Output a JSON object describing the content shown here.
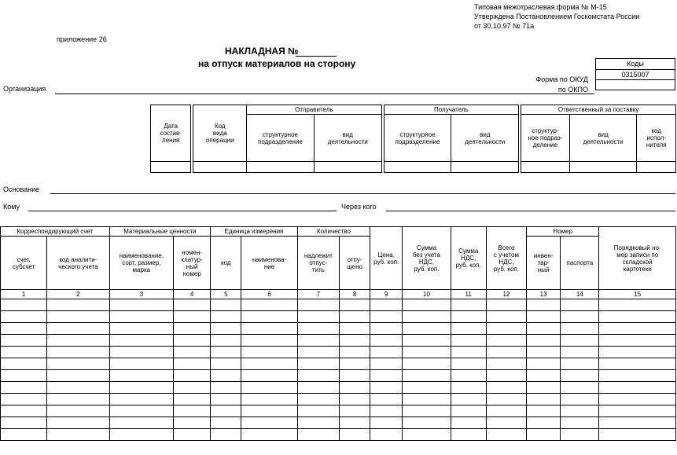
{
  "header": {
    "form_line1": "Типовая межотраслевая форма № М-15",
    "form_line2": "Утверждена Постановлением Госкомстата России",
    "form_line3": "от 30.10.97 № 71а",
    "appendix": "приложение 26",
    "title_line1": "НАКЛАДНАЯ №",
    "title_line2": "на отпуск материалов на сторону"
  },
  "codes": {
    "header": "Коды",
    "okud_label": "Форма по ОКУД",
    "okud_value": "0315007",
    "okpo_label": "по ОКПО"
  },
  "fields": {
    "organization": "Организация",
    "basis": "Основание",
    "to_whom": "Кому",
    "through_whom": "Через кого"
  },
  "table1": {
    "date": "Дата\nсостав-\nления",
    "op_code": "Код\nвида\nоперации",
    "sender": "Отправитель",
    "receiver": "Получатель",
    "responsible": "Ответственный за поставку",
    "struct_unit": "структурное\nподразделение",
    "activity": "вид\nдеятельности",
    "struct_unit_short": "структур-\nное подраз-\nделение",
    "executor_code": "код\nиспол-\nнителя"
  },
  "table2": {
    "corr_account": "Корреспондирующий счет",
    "account_sub": "счет,\nсубсчет",
    "analytic_code": "код аналити-\nческого учета",
    "material_values": "Материальные ценности",
    "name_grade": "наименование,\nсорт, размер,\nмарка",
    "nomenclature": "номен-\nклатур-\nный\nномер",
    "unit": "Единица измерения",
    "code": "код",
    "unit_name": "наименова-\nние",
    "quantity": "Количество",
    "to_release": "надлежит\nотпус-\nтить",
    "released": "отпу-\nщено",
    "price": "Цена,\nруб. коп.",
    "sum_no_vat": "Сумма\nбез учета\nНДС,\nруб. коп.",
    "vat_sum": "Сумма\nНДС,\nруб. коп.",
    "total_vat": "Всего\nс учетом\nНДС,\nруб. коп.",
    "number": "Номер",
    "inventory": "инвен-\nтар-\nный",
    "passport": "паспорта",
    "card_record": "Порядковый но-\nмер записи по\nскладской\nкартотеке",
    "col_numbers": [
      "1",
      "2",
      "3",
      "4",
      "5",
      "6",
      "7",
      "8",
      "9",
      "10",
      "11",
      "12",
      "13",
      "14",
      "15"
    ]
  }
}
